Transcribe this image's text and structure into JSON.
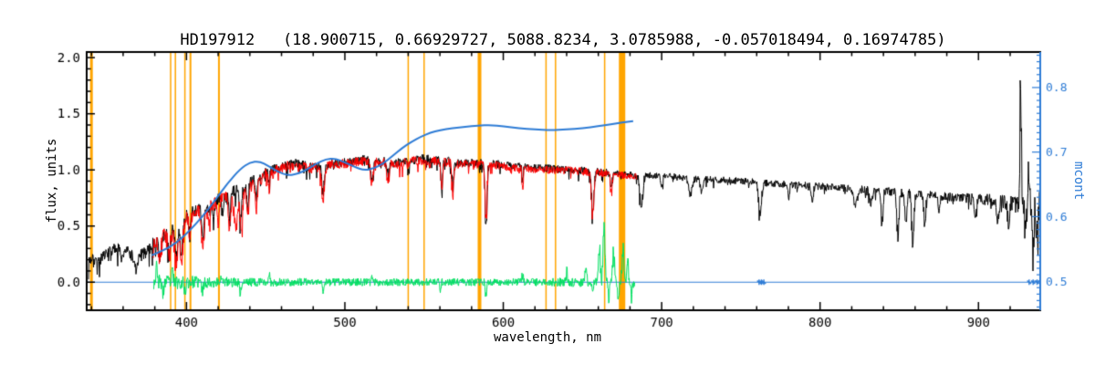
{
  "chart_data": {
    "type": "line",
    "title": "HD197912   (18.900715, 0.66929727, 5088.8234, 3.0785988, -0.057018494, 0.16974785)",
    "xlabel": "wavelength, nm",
    "ylabel_left": "flux, units",
    "ylabel_right": "mcont",
    "x_range": [
      337,
      939
    ],
    "y_left_range": [
      -0.25,
      2.05
    ],
    "y_right_range": [
      0.455,
      0.855
    ],
    "x_major_ticks": [
      400,
      500,
      600,
      700,
      800,
      900
    ],
    "x_minor_step": 20,
    "y_left_major_ticks": [
      0.0,
      0.5,
      1.0,
      1.5,
      2.0
    ],
    "y_left_minor_step": 0.1,
    "y_right_major_ticks": [
      0.5,
      0.6,
      0.7,
      0.8
    ],
    "y_right_minor_step": 0.01,
    "grid": false,
    "tick_direction": "in",
    "legend": "none",
    "colors": {
      "spectrum": "#000000",
      "fit": "#ff0000",
      "residual": "#00e060",
      "mcont": "#2e7cd6",
      "marker": "#ffa500",
      "axis": "#000000",
      "background": "#ffffff"
    },
    "orange_lines": [
      [
        340,
        3
      ],
      [
        390,
        1.5
      ],
      [
        393,
        1.5
      ],
      [
        399,
        1.5
      ],
      [
        402.5,
        2
      ],
      [
        420.5,
        2
      ],
      [
        540,
        1.5
      ],
      [
        550,
        1.5
      ],
      [
        585,
        4
      ],
      [
        627,
        1.5
      ],
      [
        633,
        1.5
      ],
      [
        664,
        1.5
      ],
      [
        675,
        7
      ]
    ],
    "series": {
      "observed": {
        "label": "observed spectrum",
        "range": [
          338,
          939
        ],
        "seed": 7,
        "absorption": true,
        "envelope": [
          [
            345,
            0.2
          ],
          [
            352,
            0.27
          ],
          [
            358,
            0.33
          ],
          [
            363,
            0.27
          ],
          [
            368,
            0.21
          ],
          [
            373,
            0.26
          ],
          [
            378,
            0.34
          ],
          [
            384,
            0.4
          ],
          [
            390,
            0.47
          ],
          [
            396,
            0.55
          ],
          [
            402,
            0.62
          ],
          [
            408,
            0.65
          ],
          [
            414,
            0.68
          ],
          [
            420,
            0.74
          ],
          [
            426,
            0.79
          ],
          [
            432,
            0.83
          ],
          [
            438,
            0.87
          ],
          [
            444,
            0.93
          ],
          [
            452,
            0.99
          ],
          [
            460,
            1.03
          ],
          [
            468,
            1.06
          ],
          [
            476,
            1.03
          ],
          [
            484,
            1.03
          ],
          [
            492,
            1.06
          ],
          [
            502,
            1.07
          ],
          [
            512,
            1.09
          ],
          [
            522,
            1.08
          ],
          [
            532,
            1.06
          ],
          [
            542,
            1.09
          ],
          [
            552,
            1.1
          ],
          [
            562,
            1.08
          ],
          [
            572,
            1.06
          ],
          [
            582,
            1.06
          ],
          [
            592,
            1.06
          ],
          [
            602,
            1.04
          ],
          [
            617,
            1.02
          ],
          [
            632,
            1.01
          ],
          [
            647,
            1.0
          ],
          [
            662,
            0.98
          ],
          [
            677,
            0.96
          ],
          [
            692,
            0.95
          ],
          [
            707,
            0.94
          ],
          [
            722,
            0.92
          ],
          [
            737,
            0.91
          ],
          [
            752,
            0.9
          ],
          [
            767,
            0.88
          ],
          [
            782,
            0.87
          ],
          [
            802,
            0.85
          ],
          [
            822,
            0.83
          ],
          [
            842,
            0.81
          ],
          [
            862,
            0.79
          ],
          [
            882,
            0.76
          ],
          [
            902,
            0.74
          ],
          [
            916,
            0.72
          ],
          [
            928,
            0.7
          ],
          [
            939,
            0.66
          ]
        ],
        "noise": [
          [
            345,
            0.05
          ],
          [
            365,
            0.055
          ],
          [
            385,
            0.06
          ],
          [
            405,
            0.055
          ],
          [
            425,
            0.05
          ],
          [
            455,
            0.045
          ],
          [
            485,
            0.042
          ],
          [
            525,
            0.04
          ],
          [
            565,
            0.04
          ],
          [
            605,
            0.035
          ],
          [
            655,
            0.035
          ],
          [
            705,
            0.03
          ],
          [
            755,
            0.03
          ],
          [
            805,
            0.033
          ],
          [
            855,
            0.038
          ],
          [
            885,
            0.042
          ],
          [
            905,
            0.05
          ],
          [
            920,
            0.07
          ],
          [
            928,
            0.12
          ],
          [
            934,
            0.17
          ],
          [
            939,
            0.2
          ]
        ],
        "features": [
          [
            359,
            1.2,
            -0.12
          ],
          [
            368,
            1.5,
            -0.1
          ],
          [
            383,
            1,
            -0.18
          ],
          [
            389,
            1,
            -0.22
          ],
          [
            393.4,
            1.2,
            -0.3
          ],
          [
            396.8,
            1.2,
            -0.3
          ],
          [
            402,
            0.9,
            -0.18
          ],
          [
            410.2,
            1,
            -0.28
          ],
          [
            417,
            0.8,
            -0.15
          ],
          [
            422.7,
            0.8,
            -0.18
          ],
          [
            427,
            0.9,
            -0.2
          ],
          [
            434,
            1,
            -0.33
          ],
          [
            438.5,
            0.8,
            -0.22
          ],
          [
            444,
            0.8,
            -0.18
          ],
          [
            452,
            0.7,
            -0.12
          ],
          [
            486.1,
            1,
            -0.28
          ],
          [
            517,
            1.2,
            -0.17
          ],
          [
            527,
            0.9,
            -0.13
          ],
          [
            540,
            0.6,
            -0.12
          ],
          [
            561,
            0.7,
            -0.25
          ],
          [
            568,
            0.7,
            -0.28
          ],
          [
            589,
            0.9,
            -0.55
          ],
          [
            612,
            0.6,
            -0.12
          ],
          [
            656.3,
            1,
            -0.38
          ],
          [
            668,
            0.7,
            -0.15
          ],
          [
            687,
            1.3,
            -0.3
          ],
          [
            700,
            0.8,
            -0.12
          ],
          [
            718,
            1.5,
            -0.15
          ],
          [
            725,
            1,
            -0.12
          ],
          [
            762,
            1.3,
            -0.28
          ],
          [
            780,
            0.8,
            -0.1
          ],
          [
            795,
            1,
            -0.12
          ],
          [
            822,
            1.5,
            -0.15
          ],
          [
            832,
            1,
            -0.12
          ],
          [
            839,
            0.9,
            -0.3
          ],
          [
            849,
            0.9,
            -0.42
          ],
          [
            854,
            0.8,
            -0.3
          ],
          [
            858.5,
            1,
            -0.45
          ],
          [
            866,
            0.9,
            -0.28
          ],
          [
            875,
            0.8,
            -0.15
          ],
          [
            898,
            1,
            -0.18
          ],
          [
            912,
            1,
            -0.2
          ],
          [
            919,
            0.9,
            -0.25
          ],
          [
            926.5,
            0.6,
            1.1
          ],
          [
            929.5,
            0.7,
            -0.3
          ],
          [
            931.5,
            0.6,
            0.35
          ],
          [
            934.5,
            0.8,
            -0.4
          ],
          [
            937,
            0.8,
            -0.35
          ]
        ]
      },
      "fit": {
        "label": "fitted template spectrum",
        "range": [
          379,
          684
        ],
        "seed": 91,
        "absorption": true,
        "envelope": "observed",
        "envelope_scale": 0.99,
        "noise": [
          [
            379,
            0.06
          ],
          [
            405,
            0.055
          ],
          [
            430,
            0.05
          ],
          [
            460,
            0.045
          ],
          [
            500,
            0.042
          ],
          [
            560,
            0.04
          ],
          [
            620,
            0.036
          ],
          [
            684,
            0.035
          ]
        ],
        "features": [
          [
            383,
            1,
            -0.22
          ],
          [
            389,
            1,
            -0.26
          ],
          [
            393.4,
            1.3,
            -0.36
          ],
          [
            396.8,
            1.3,
            -0.36
          ],
          [
            402,
            1,
            -0.2
          ],
          [
            410.2,
            1.2,
            -0.34
          ],
          [
            414,
            0.8,
            -0.18
          ],
          [
            420,
            0.9,
            -0.2
          ],
          [
            427,
            1.2,
            -0.3
          ],
          [
            431,
            1.5,
            -0.32
          ],
          [
            434.5,
            1.2,
            -0.4
          ],
          [
            438.5,
            1,
            -0.28
          ],
          [
            444,
            1,
            -0.24
          ],
          [
            452,
            0.8,
            -0.15
          ],
          [
            486.1,
            1.2,
            -0.3
          ],
          [
            517,
            1.3,
            -0.2
          ],
          [
            527,
            1,
            -0.15
          ],
          [
            561,
            0.7,
            -0.26
          ],
          [
            568,
            0.7,
            -0.3
          ],
          [
            589,
            0.9,
            -0.5
          ],
          [
            612,
            0.6,
            -0.14
          ],
          [
            656.3,
            1.1,
            -0.4
          ],
          [
            668,
            0.7,
            -0.18
          ]
        ]
      },
      "residual": {
        "label": "residual (observed - fit)",
        "range": [
          379,
          683
        ],
        "seed": 23,
        "absorption": false,
        "envelope": [
          [
            379,
            0
          ],
          [
            683,
            0
          ]
        ],
        "noise": [
          [
            379,
            0.07
          ],
          [
            395,
            0.06
          ],
          [
            415,
            0.05
          ],
          [
            440,
            0.04
          ],
          [
            480,
            0.035
          ],
          [
            540,
            0.033
          ],
          [
            600,
            0.034
          ],
          [
            640,
            0.04
          ],
          [
            660,
            0.045
          ],
          [
            683,
            0.05
          ]
        ],
        "features": [
          [
            381,
            0.7,
            0.14
          ],
          [
            385,
            0.6,
            -0.12
          ],
          [
            391,
            0.6,
            0.1
          ],
          [
            399,
            0.6,
            -0.1
          ],
          [
            410,
            0.6,
            -0.1
          ],
          [
            422,
            0.5,
            0.08
          ],
          [
            434,
            0.7,
            -0.1
          ],
          [
            452,
            0.5,
            0.07
          ],
          [
            486,
            0.6,
            -0.08
          ],
          [
            517,
            0.6,
            0.06
          ],
          [
            560,
            0.5,
            -0.07
          ],
          [
            589,
            0.7,
            -0.12
          ],
          [
            612,
            0.5,
            0.07
          ],
          [
            640,
            0.5,
            0.1
          ],
          [
            652,
            0.6,
            0.16
          ],
          [
            656.5,
            0.5,
            -0.12
          ],
          [
            660.5,
            0.7,
            0.35
          ],
          [
            663.5,
            0.8,
            0.52
          ],
          [
            666.5,
            0.5,
            -0.18
          ],
          [
            669.5,
            0.7,
            0.28
          ],
          [
            672.5,
            0.5,
            -0.22
          ],
          [
            675.5,
            0.7,
            0.34
          ],
          [
            678.5,
            0.6,
            0.22
          ],
          [
            681,
            0.5,
            -0.15
          ]
        ]
      },
      "mcont_curve": {
        "label": "mcont continuum (right axis)",
        "points": [
          [
            378,
            0.54
          ],
          [
            386,
            0.548
          ],
          [
            394,
            0.56
          ],
          [
            402,
            0.578
          ],
          [
            410,
            0.6
          ],
          [
            418,
            0.625
          ],
          [
            426,
            0.652
          ],
          [
            434,
            0.674
          ],
          [
            440,
            0.684
          ],
          [
            446,
            0.686
          ],
          [
            452,
            0.678
          ],
          [
            458,
            0.669
          ],
          [
            464,
            0.664
          ],
          [
            470,
            0.666
          ],
          [
            476,
            0.673
          ],
          [
            482,
            0.682
          ],
          [
            488,
            0.689
          ],
          [
            494,
            0.69
          ],
          [
            500,
            0.684
          ],
          [
            506,
            0.677
          ],
          [
            512,
            0.672
          ],
          [
            518,
            0.674
          ],
          [
            524,
            0.682
          ],
          [
            530,
            0.694
          ],
          [
            536,
            0.706
          ],
          [
            542,
            0.716
          ],
          [
            548,
            0.724
          ],
          [
            554,
            0.73
          ],
          [
            560,
            0.734
          ],
          [
            568,
            0.737
          ],
          [
            576,
            0.739
          ],
          [
            584,
            0.741
          ],
          [
            592,
            0.742
          ],
          [
            600,
            0.74
          ],
          [
            610,
            0.737
          ],
          [
            620,
            0.735
          ],
          [
            630,
            0.734
          ],
          [
            640,
            0.735
          ],
          [
            650,
            0.737
          ],
          [
            660,
            0.74
          ],
          [
            668,
            0.743
          ],
          [
            675,
            0.746
          ],
          [
            682,
            0.748
          ]
        ]
      },
      "zero_line": {
        "label": "zero flux baseline",
        "value": 0.0,
        "marker_wl": [
          761.5,
          763,
          764.5,
          932,
          934.5,
          937,
          939
        ]
      }
    }
  }
}
